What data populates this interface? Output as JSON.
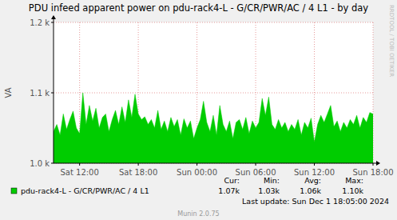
{
  "chart_data": {
    "type": "area",
    "title": "PDU infeed apparent power on pdu-rack4-L - G/CR/PWR/AC / 4 L1 - by day",
    "y_label": "VA",
    "watermark": "RRDTOOL / TOBI OETIKER",
    "categories": [
      null,
      null,
      null,
      null,
      null,
      null,
      null,
      null,
      "Sat 12:00",
      null,
      null,
      null,
      null,
      null,
      null,
      null,
      null,
      null,
      null,
      null,
      null,
      null,
      null,
      null,
      null,
      null,
      "Sat 18:00",
      null,
      null,
      null,
      null,
      null,
      null,
      null,
      null,
      null,
      null,
      null,
      null,
      null,
      null,
      null,
      null,
      null,
      "Sun 00:00",
      null,
      null,
      null,
      null,
      null,
      null,
      null,
      null,
      null,
      null,
      null,
      null,
      null,
      null,
      null,
      null,
      null,
      "Sun 06:00",
      null,
      null,
      null,
      null,
      null,
      null,
      null,
      null,
      null,
      null,
      null,
      null,
      null,
      null,
      null,
      null,
      null,
      "Sun 12:00",
      null,
      null,
      null,
      null,
      null,
      null,
      null,
      null,
      null,
      null,
      null,
      null,
      null,
      null,
      null,
      null,
      null,
      "Sun 18:00"
    ],
    "series": [
      {
        "name": "pdu-rack4-L - G/CR/PWR/AC / 4 L1",
        "color": "#00cc00",
        "values": [
          1045,
          1055,
          1040,
          1070,
          1048,
          1062,
          1074,
          1050,
          1042,
          1100,
          1055,
          1082,
          1060,
          1078,
          1050,
          1065,
          1070,
          1045,
          1062,
          1075,
          1055,
          1080,
          1058,
          1090,
          1065,
          1098,
          1070,
          1062,
          1066,
          1055,
          1062,
          1050,
          1075,
          1048,
          1060,
          1045,
          1065,
          1052,
          1062,
          1040,
          1063,
          1050,
          1060,
          1035,
          1050,
          1062,
          1088,
          1058,
          1045,
          1068,
          1040,
          1082,
          1055,
          1045,
          1060,
          1035,
          1058,
          1062,
          1048,
          1065,
          1042,
          1060,
          1050,
          1058,
          1092,
          1068,
          1094,
          1055,
          1048,
          1062,
          1050,
          1058,
          1045,
          1055,
          1048,
          1062,
          1040,
          1058,
          1050,
          1064,
          1030,
          1055,
          1068,
          1058,
          1070,
          1082,
          1052,
          1060,
          1045,
          1058,
          1050,
          1062,
          1055,
          1068,
          1050,
          1065,
          1058,
          1072,
          1070
        ]
      }
    ],
    "ylim": [
      1000,
      1200
    ],
    "yticks": [
      {
        "value": 1000,
        "label": "1.0 k"
      },
      {
        "value": 1100,
        "label": "1.1 k"
      },
      {
        "value": 1200,
        "label": "1.2 k"
      }
    ],
    "grid": true,
    "legend_stats": [
      {
        "name": "Cur:",
        "value": 1070,
        "label": "1.07k"
      },
      {
        "name": "Min:",
        "value": 1030,
        "label": "1.03k"
      },
      {
        "name": "Avg:",
        "value": 1060,
        "label": "1.06k"
      },
      {
        "name": "Max:",
        "value": 1100,
        "label": "1.10k"
      }
    ],
    "last_update": "Last update: Sun Dec  1 18:05:00 2024",
    "footer": "Munin 2.0.75"
  }
}
